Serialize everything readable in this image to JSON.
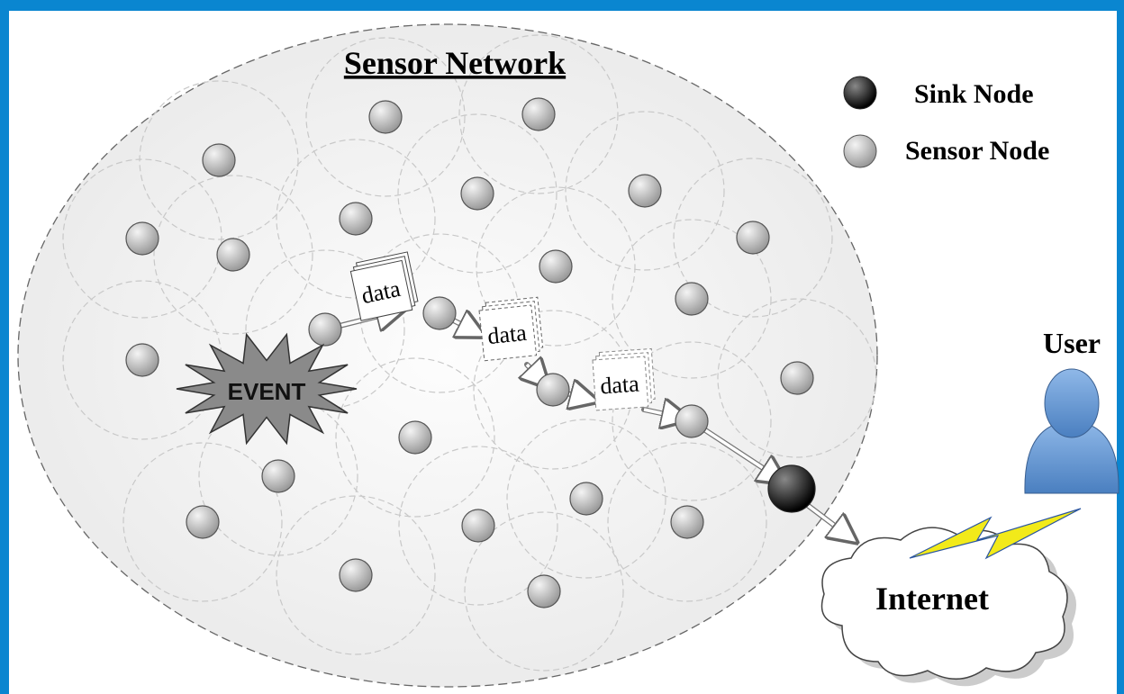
{
  "title": "Sensor Network",
  "legend": {
    "sink": "Sink Node",
    "sensor": "Sensor Node"
  },
  "event": "EVENT",
  "packets": [
    "data",
    "data",
    "data"
  ],
  "user": "User",
  "cloud": "Internet"
}
